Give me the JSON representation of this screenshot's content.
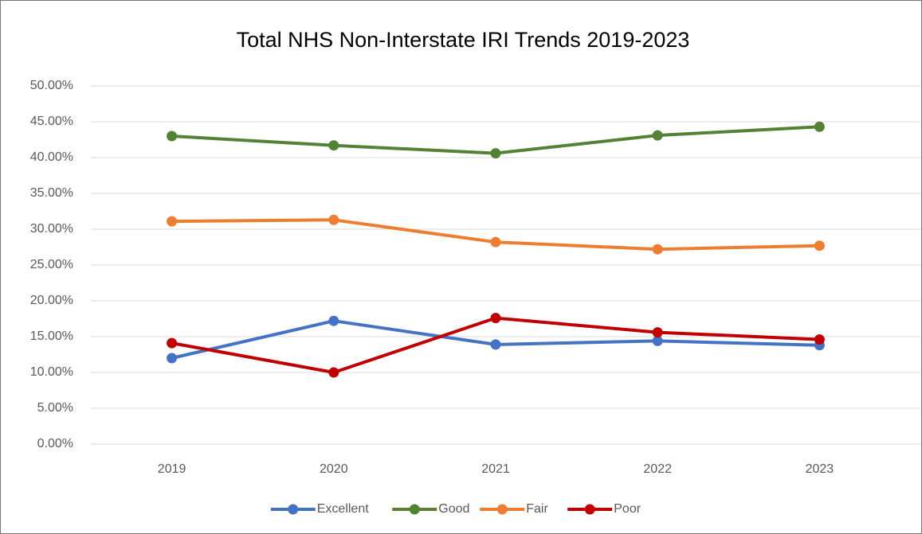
{
  "chart_data": {
    "type": "line",
    "title": "Total NHS Non-Interstate IRI Trends 2019-2023",
    "categories": [
      "2019",
      "2020",
      "2021",
      "2022",
      "2023"
    ],
    "series": [
      {
        "name": "Excellent",
        "color": "#4472c4",
        "values": [
          12.0,
          17.2,
          13.9,
          14.4,
          13.8
        ]
      },
      {
        "name": "Good",
        "color": "#548235",
        "values": [
          43.0,
          41.7,
          40.6,
          43.1,
          44.3
        ]
      },
      {
        "name": "Fair",
        "color": "#ed7d31",
        "values": [
          31.1,
          31.3,
          28.2,
          27.2,
          27.7
        ]
      },
      {
        "name": "Poor",
        "color": "#c00000",
        "values": [
          14.1,
          10.0,
          17.6,
          15.6,
          14.6
        ]
      }
    ],
    "ylim": [
      0,
      50
    ],
    "yticks": [
      {
        "value": 0,
        "label": "0.00%"
      },
      {
        "value": 5,
        "label": "5.00%"
      },
      {
        "value": 10,
        "label": "10.00%"
      },
      {
        "value": 15,
        "label": "15.00%"
      },
      {
        "value": 20,
        "label": "20.00%"
      },
      {
        "value": 25,
        "label": "25.00%"
      },
      {
        "value": 30,
        "label": "30.00%"
      },
      {
        "value": 35,
        "label": "35.00%"
      },
      {
        "value": 40,
        "label": "40.00%"
      },
      {
        "value": 45,
        "label": "45.00%"
      },
      {
        "value": 50,
        "label": "50.00%"
      }
    ],
    "grid": true,
    "legend": "bottom"
  }
}
